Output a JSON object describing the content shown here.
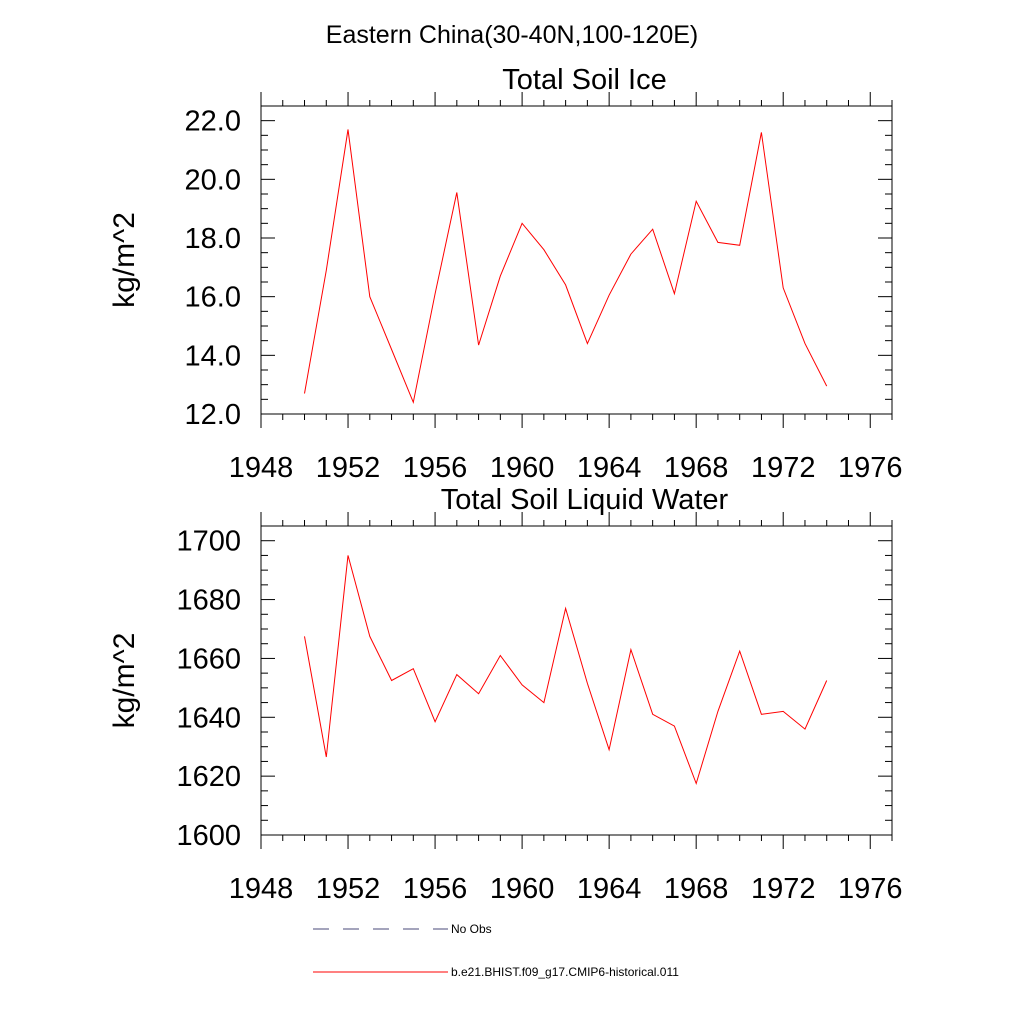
{
  "figure": {
    "title": "Eastern China(30-40N,100-120E)"
  },
  "chart_data": [
    {
      "type": "line",
      "title": "Total Soil Ice",
      "xlabel": "",
      "ylabel": "kg/m^2",
      "xlim": [
        1948,
        1977
      ],
      "ylim": [
        12.0,
        22.5
      ],
      "xticks": [
        1948,
        1952,
        1956,
        1960,
        1964,
        1968,
        1972,
        1976
      ],
      "yticks": [
        "12.0",
        "14.0",
        "16.0",
        "18.0",
        "20.0",
        "22.0"
      ],
      "grid": false,
      "series": [
        {
          "name": "b.e21.BHIST.f09_g17.CMIP6-historical.011",
          "color": "#ff0000",
          "x": [
            1950,
            1951,
            1952,
            1953,
            1954,
            1955,
            1956,
            1957,
            1958,
            1959,
            1960,
            1961,
            1962,
            1963,
            1964,
            1965,
            1966,
            1967,
            1968,
            1969,
            1970,
            1971,
            1972,
            1973,
            1974
          ],
          "y": [
            12.7,
            16.9,
            21.7,
            16.0,
            14.2,
            12.4,
            16.1,
            19.55,
            14.35,
            16.7,
            18.5,
            17.6,
            16.4,
            14.4,
            16.05,
            17.45,
            18.3,
            16.1,
            19.25,
            17.85,
            17.75,
            21.6,
            16.3,
            14.4,
            12.95
          ]
        }
      ]
    },
    {
      "type": "line",
      "title": "Total Soil Liquid Water",
      "xlabel": "",
      "ylabel": "kg/m^2",
      "xlim": [
        1948,
        1977
      ],
      "ylim": [
        1600,
        1705
      ],
      "xticks": [
        1948,
        1952,
        1956,
        1960,
        1964,
        1968,
        1972,
        1976
      ],
      "yticks": [
        "1600",
        "1620",
        "1640",
        "1660",
        "1680",
        "1700"
      ],
      "grid": false,
      "series": [
        {
          "name": "b.e21.BHIST.f09_g17.CMIP6-historical.011",
          "color": "#ff0000",
          "x": [
            1950,
            1951,
            1952,
            1953,
            1954,
            1955,
            1956,
            1957,
            1958,
            1959,
            1960,
            1961,
            1962,
            1963,
            1964,
            1965,
            1966,
            1967,
            1968,
            1969,
            1970,
            1971,
            1972,
            1973,
            1974
          ],
          "y": [
            1667.5,
            1626.5,
            1695.0,
            1667.5,
            1652.5,
            1656.5,
            1638.5,
            1654.5,
            1648.0,
            1661.0,
            1651.0,
            1645.0,
            1677.0,
            1651.5,
            1629.0,
            1663.0,
            1641.0,
            1637.0,
            1617.5,
            1642.0,
            1662.5,
            1641.0,
            1642.0,
            1636.0,
            1652.5
          ]
        }
      ]
    }
  ],
  "legend": [
    {
      "label": "No Obs",
      "style": "dashed",
      "color": "#4a4a7a"
    },
    {
      "label": "b.e21.BHIST.f09_g17.CMIP6-historical.011",
      "style": "solid",
      "color": "#ff0000"
    }
  ]
}
